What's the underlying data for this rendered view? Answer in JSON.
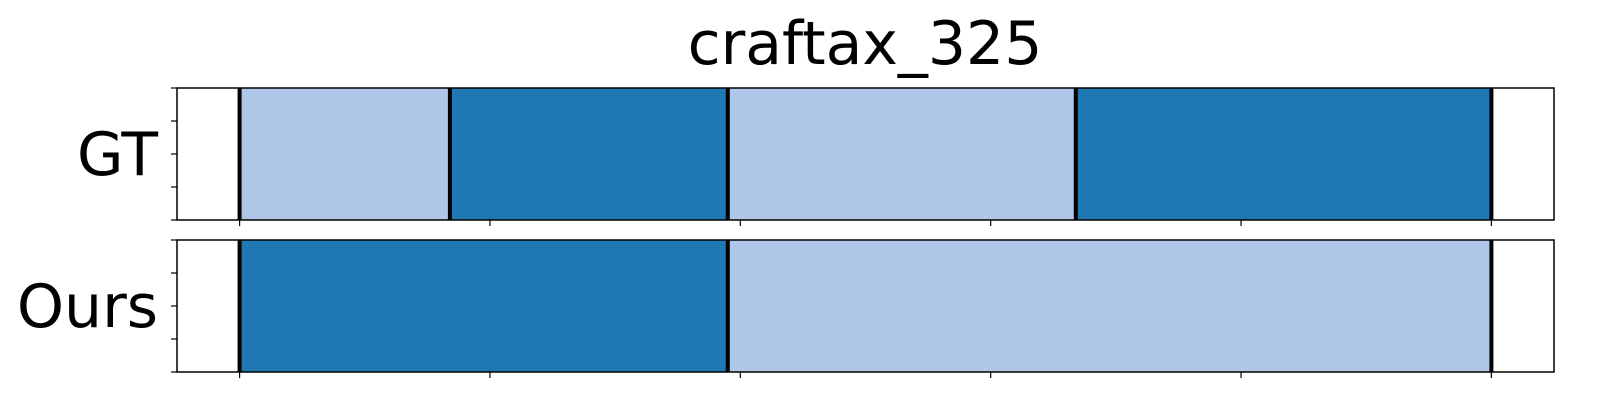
{
  "chart_data": {
    "type": "segmentation",
    "title": "craftax_325",
    "xlim": [
      -25,
      525
    ],
    "x_ticks": [
      0,
      100,
      200,
      300,
      400,
      500
    ],
    "colors": {
      "light": "#aec7e8",
      "dark": "#1f77b4",
      "boundary": "#000000"
    },
    "rows": [
      {
        "label": "GT",
        "segments": [
          {
            "start": 0,
            "end": 84,
            "class": "light"
          },
          {
            "start": 84,
            "end": 195,
            "class": "dark"
          },
          {
            "start": 195,
            "end": 334,
            "class": "light"
          },
          {
            "start": 334,
            "end": 500,
            "class": "dark"
          }
        ],
        "boundaries": [
          0,
          84,
          195,
          334,
          500
        ]
      },
      {
        "label": "Ours",
        "segments": [
          {
            "start": 0,
            "end": 195,
            "class": "dark"
          },
          {
            "start": 195,
            "end": 500,
            "class": "light"
          }
        ],
        "boundaries": [
          0,
          195,
          500
        ]
      }
    ]
  }
}
